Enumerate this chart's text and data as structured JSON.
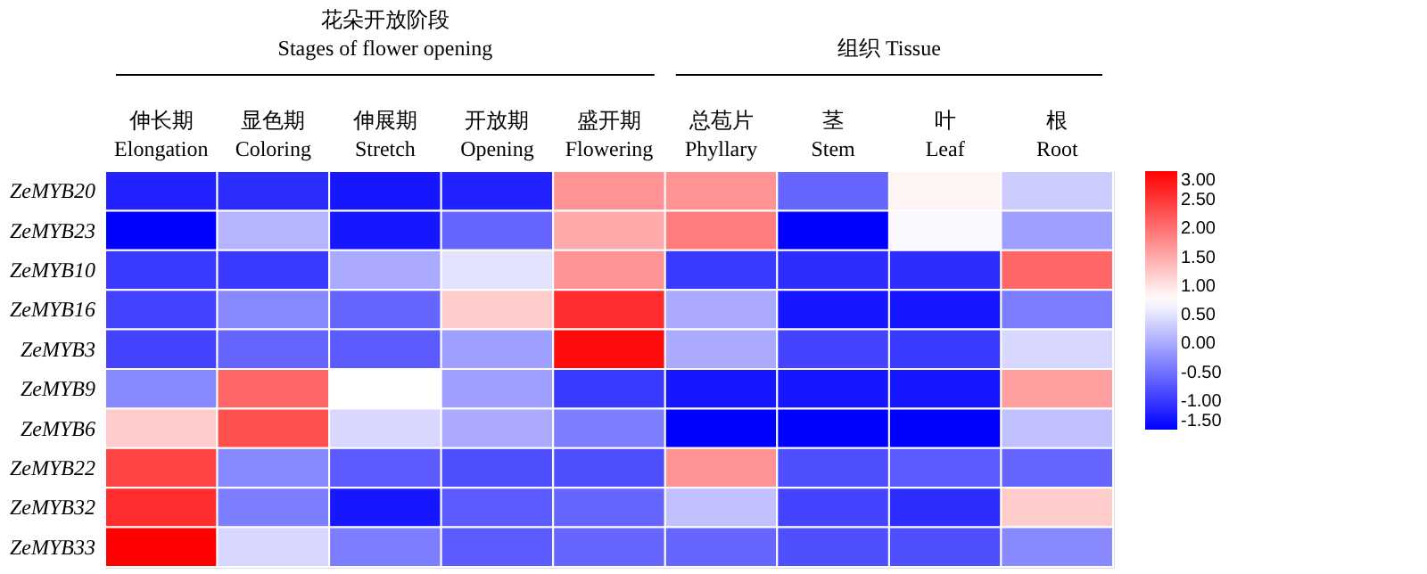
{
  "chart_data": {
    "type": "heatmap",
    "categories": [
      "伸长期\nElongation",
      "显色期\nColoring",
      "伸展期\nStretch",
      "开放期\nOpening",
      "盛开期\nFlowering",
      "总苞片\nPhyllary",
      "茎\nStem",
      "叶\nLeaf",
      "根\nRoot"
    ],
    "y_categories": [
      "ZeMYB20",
      "ZeMYB23",
      "ZeMYB10",
      "ZeMYB16",
      "ZeMYB3",
      "ZeMYB9",
      "ZeMYB6",
      "ZeMYB22",
      "ZeMYB32",
      "ZeMYB33"
    ],
    "cells": [
      [
        -1.2,
        -1.1,
        -1.3,
        -1.2,
        1.7,
        1.7,
        -0.6,
        0.85,
        0.3
      ],
      [
        -1.5,
        0.1,
        -1.3,
        -0.6,
        1.5,
        1.9,
        -1.5,
        0.7,
        -0.1
      ],
      [
        -1.0,
        -1.0,
        0.0,
        0.5,
        1.7,
        -1.0,
        -1.1,
        -1.1,
        2.1
      ],
      [
        -0.9,
        -0.3,
        -0.6,
        1.2,
        2.6,
        0.0,
        -1.3,
        -1.3,
        -0.4
      ],
      [
        -0.9,
        -0.6,
        -0.7,
        -0.1,
        2.9,
        0.0,
        -0.9,
        -1.0,
        0.4
      ],
      [
        -0.3,
        2.1,
        0.75,
        -0.1,
        -1.0,
        -1.3,
        -1.3,
        -1.3,
        1.6
      ],
      [
        1.2,
        2.3,
        0.4,
        0.0,
        -0.4,
        -1.5,
        -1.5,
        -1.5,
        0.2
      ],
      [
        2.4,
        -0.3,
        -0.7,
        -0.8,
        -0.8,
        1.7,
        -0.8,
        -0.7,
        -0.6
      ],
      [
        2.6,
        -0.4,
        -1.3,
        -0.7,
        -0.6,
        0.2,
        -0.9,
        -1.1,
        1.2
      ],
      [
        3.0,
        0.4,
        -0.4,
        -0.7,
        -0.6,
        -0.6,
        -0.8,
        -0.8,
        -0.3
      ]
    ],
    "clim": [
      -1.5,
      3
    ],
    "cticks": [
      {
        "value": 3,
        "label": "3.00"
      },
      {
        "value": 2.5,
        "label": "2.50"
      },
      {
        "value": 2,
        "label": "2.00"
      },
      {
        "value": 1.5,
        "label": "1.50"
      },
      {
        "value": 1,
        "label": "1.00"
      },
      {
        "value": 0.5,
        "label": "0.50"
      },
      {
        "value": 0,
        "label": "0.00"
      },
      {
        "value": -0.5,
        "label": "-0.50"
      },
      {
        "value": -1,
        "label": "-1.00"
      },
      {
        "value": -1.5,
        "label": "-1.50"
      }
    ],
    "colors": [
      "#0000ff",
      "#ffffff",
      "#ff0000"
    ],
    "annotations": [
      "花朵开放阶段\nStages of flower opening",
      "组织 Tissue"
    ]
  }
}
